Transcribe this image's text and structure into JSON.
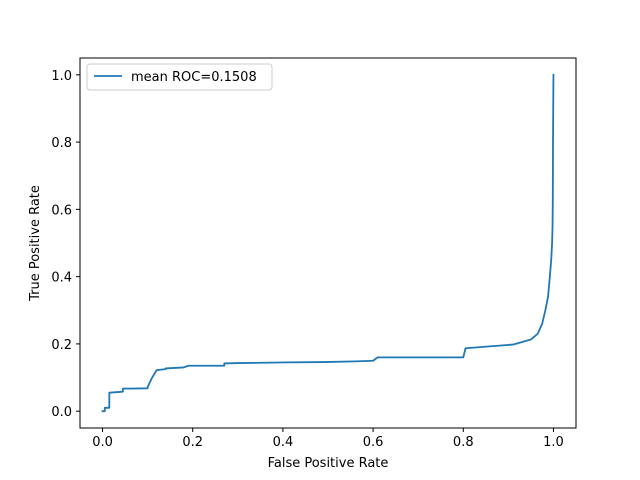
{
  "chart_data": {
    "type": "line",
    "xlabel": "False Positive Rate",
    "ylabel": "True Positive Rate",
    "xlim": [
      -0.05,
      1.05
    ],
    "ylim": [
      -0.05,
      1.05
    ],
    "xticks": [
      0.0,
      0.2,
      0.4,
      0.6,
      0.8,
      1.0
    ],
    "xtick_labels": [
      "0.0",
      "0.2",
      "0.4",
      "0.6",
      "0.8",
      "1.0"
    ],
    "yticks": [
      0.0,
      0.2,
      0.4,
      0.6,
      0.8,
      1.0
    ],
    "ytick_labels": [
      "0.0",
      "0.2",
      "0.4",
      "0.6",
      "0.8",
      "1.0"
    ],
    "grid": false,
    "legend": {
      "position": "top-left",
      "entries": [
        "mean ROC=0.1508"
      ]
    },
    "series": [
      {
        "name": "mean ROC=0.1508",
        "color": "#1f77b4",
        "x": [
          0.0,
          0.005,
          0.005,
          0.015,
          0.015,
          0.045,
          0.045,
          0.1,
          0.1,
          0.11,
          0.12,
          0.14,
          0.14,
          0.18,
          0.19,
          0.27,
          0.27,
          0.3,
          0.41,
          0.49,
          0.56,
          0.6,
          0.61,
          0.8,
          0.805,
          0.91,
          0.95,
          0.965,
          0.975,
          0.982,
          0.988,
          0.992,
          0.995,
          0.997,
          0.998,
          0.9985,
          0.999,
          1.0
        ],
        "y": [
          0.0,
          0.0,
          0.01,
          0.01,
          0.055,
          0.058,
          0.067,
          0.068,
          0.072,
          0.1,
          0.122,
          0.125,
          0.127,
          0.13,
          0.135,
          0.135,
          0.142,
          0.143,
          0.145,
          0.146,
          0.148,
          0.15,
          0.16,
          0.16,
          0.187,
          0.198,
          0.213,
          0.23,
          0.26,
          0.3,
          0.34,
          0.4,
          0.45,
          0.5,
          0.55,
          0.62,
          0.8,
          1.0
        ]
      }
    ]
  }
}
